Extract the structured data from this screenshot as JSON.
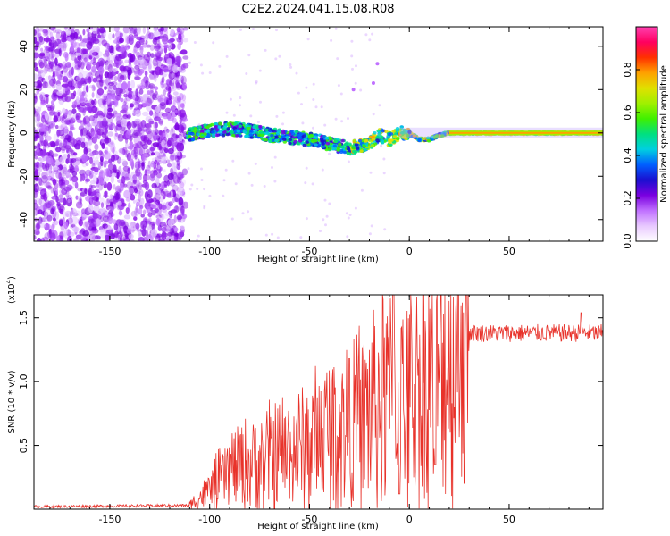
{
  "figure_title": "C2E2.2024.041.15.08.R08",
  "chart_data": [
    {
      "type": "heatmap",
      "title": "C2E2.2024.041.15.08.R08",
      "xlabel": "Height of straight line (km)",
      "ylabel": "Frequency (Hz)",
      "xlim": [
        -188,
        97
      ],
      "ylim": [
        -50,
        49
      ],
      "xticks": [
        -150,
        -100,
        -50,
        0,
        50
      ],
      "xtick_labels": [
        "-150",
        "-100",
        "-50",
        "0",
        "50"
      ],
      "yticks": [
        40,
        20,
        0,
        -20,
        -40
      ],
      "ytick_labels": [
        "40",
        "20",
        "0",
        "-20",
        "-40"
      ],
      "ridge_frequency_profile": [
        {
          "x": -110,
          "y": -1
        },
        {
          "x": -100,
          "y": 1
        },
        {
          "x": -90,
          "y": 2
        },
        {
          "x": -80,
          "y": 1
        },
        {
          "x": -70,
          "y": -1
        },
        {
          "x": -60,
          "y": -2
        },
        {
          "x": -50,
          "y": -3
        },
        {
          "x": -40,
          "y": -5
        },
        {
          "x": -30,
          "y": -7
        },
        {
          "x": -20,
          "y": -5
        },
        {
          "x": -15,
          "y": -1
        },
        {
          "x": -10,
          "y": -3
        },
        {
          "x": -5,
          "y": 0
        },
        {
          "x": 0,
          "y": 0
        },
        {
          "x": 5,
          "y": -3
        },
        {
          "x": 10,
          "y": -3
        },
        {
          "x": 15,
          "y": -1
        },
        {
          "x": 20,
          "y": 0
        },
        {
          "x": 95,
          "y": 0
        }
      ],
      "colorbar": {
        "label": "Normalized spectral amplitude",
        "range": [
          0,
          1
        ],
        "ticks": [
          0.0,
          0.2,
          0.4,
          0.6,
          0.8
        ],
        "tick_labels": [
          "0.0",
          "0.2",
          "0.4",
          "0.6",
          "0.8"
        ],
        "colors": [
          "#ffffff",
          "#e8c8ff",
          "#c070ff",
          "#7a00e0",
          "#1a10d0",
          "#0060ff",
          "#00d0e0",
          "#00e080",
          "#40f000",
          "#a0f000",
          "#e0e000",
          "#ffa000",
          "#ff3000",
          "#ff0060",
          "#ff40b0"
        ]
      }
    },
    {
      "type": "line",
      "xlabel": "Height of straight line (km)",
      "ylabel": "SNR (10 * v/v)",
      "scale_label": "(x10",
      "scale_exponent": "4",
      "scale_suffix": ")",
      "xlim": [
        -188,
        97
      ],
      "ylim": [
        0,
        16800
      ],
      "xticks": [
        -150,
        -100,
        -50,
        0,
        50
      ],
      "xtick_labels": [
        "-150",
        "-100",
        "-50",
        "0",
        "50"
      ],
      "yticks": [
        5000,
        10000,
        15000
      ],
      "ytick_labels": [
        "0.5",
        "1.0",
        "1.5"
      ],
      "color": "#e8322a",
      "series_envelope": [
        {
          "x": -188,
          "y": 200
        },
        {
          "x": -110,
          "y": 300
        },
        {
          "x": -100,
          "y": 1500
        },
        {
          "x": -90,
          "y": 3000
        },
        {
          "x": -80,
          "y": 3500
        },
        {
          "x": -70,
          "y": 4000
        },
        {
          "x": -60,
          "y": 4500
        },
        {
          "x": -50,
          "y": 5000
        },
        {
          "x": -40,
          "y": 6000
        },
        {
          "x": -30,
          "y": 6500
        },
        {
          "x": -20,
          "y": 7500
        },
        {
          "x": -10,
          "y": 9000
        },
        {
          "x": -5,
          "y": 8000
        },
        {
          "x": 0,
          "y": 9000
        },
        {
          "x": 5,
          "y": 10000
        },
        {
          "x": 10,
          "y": 10500
        },
        {
          "x": 15,
          "y": 11000
        },
        {
          "x": 20,
          "y": 12000
        },
        {
          "x": 25,
          "y": 13000
        },
        {
          "x": 30,
          "y": 13800
        },
        {
          "x": 50,
          "y": 13800
        },
        {
          "x": 97,
          "y": 13800
        }
      ],
      "notable_peaks": [
        {
          "x": -8,
          "y": 16800
        },
        {
          "x": -30,
          "y": 11800
        },
        {
          "x": 13,
          "y": 15000
        },
        {
          "x": 86,
          "y": 15400
        }
      ],
      "notable_dips": [
        {
          "x": 13,
          "y": 3500
        },
        {
          "x": -5,
          "y": 1200
        }
      ]
    }
  ]
}
